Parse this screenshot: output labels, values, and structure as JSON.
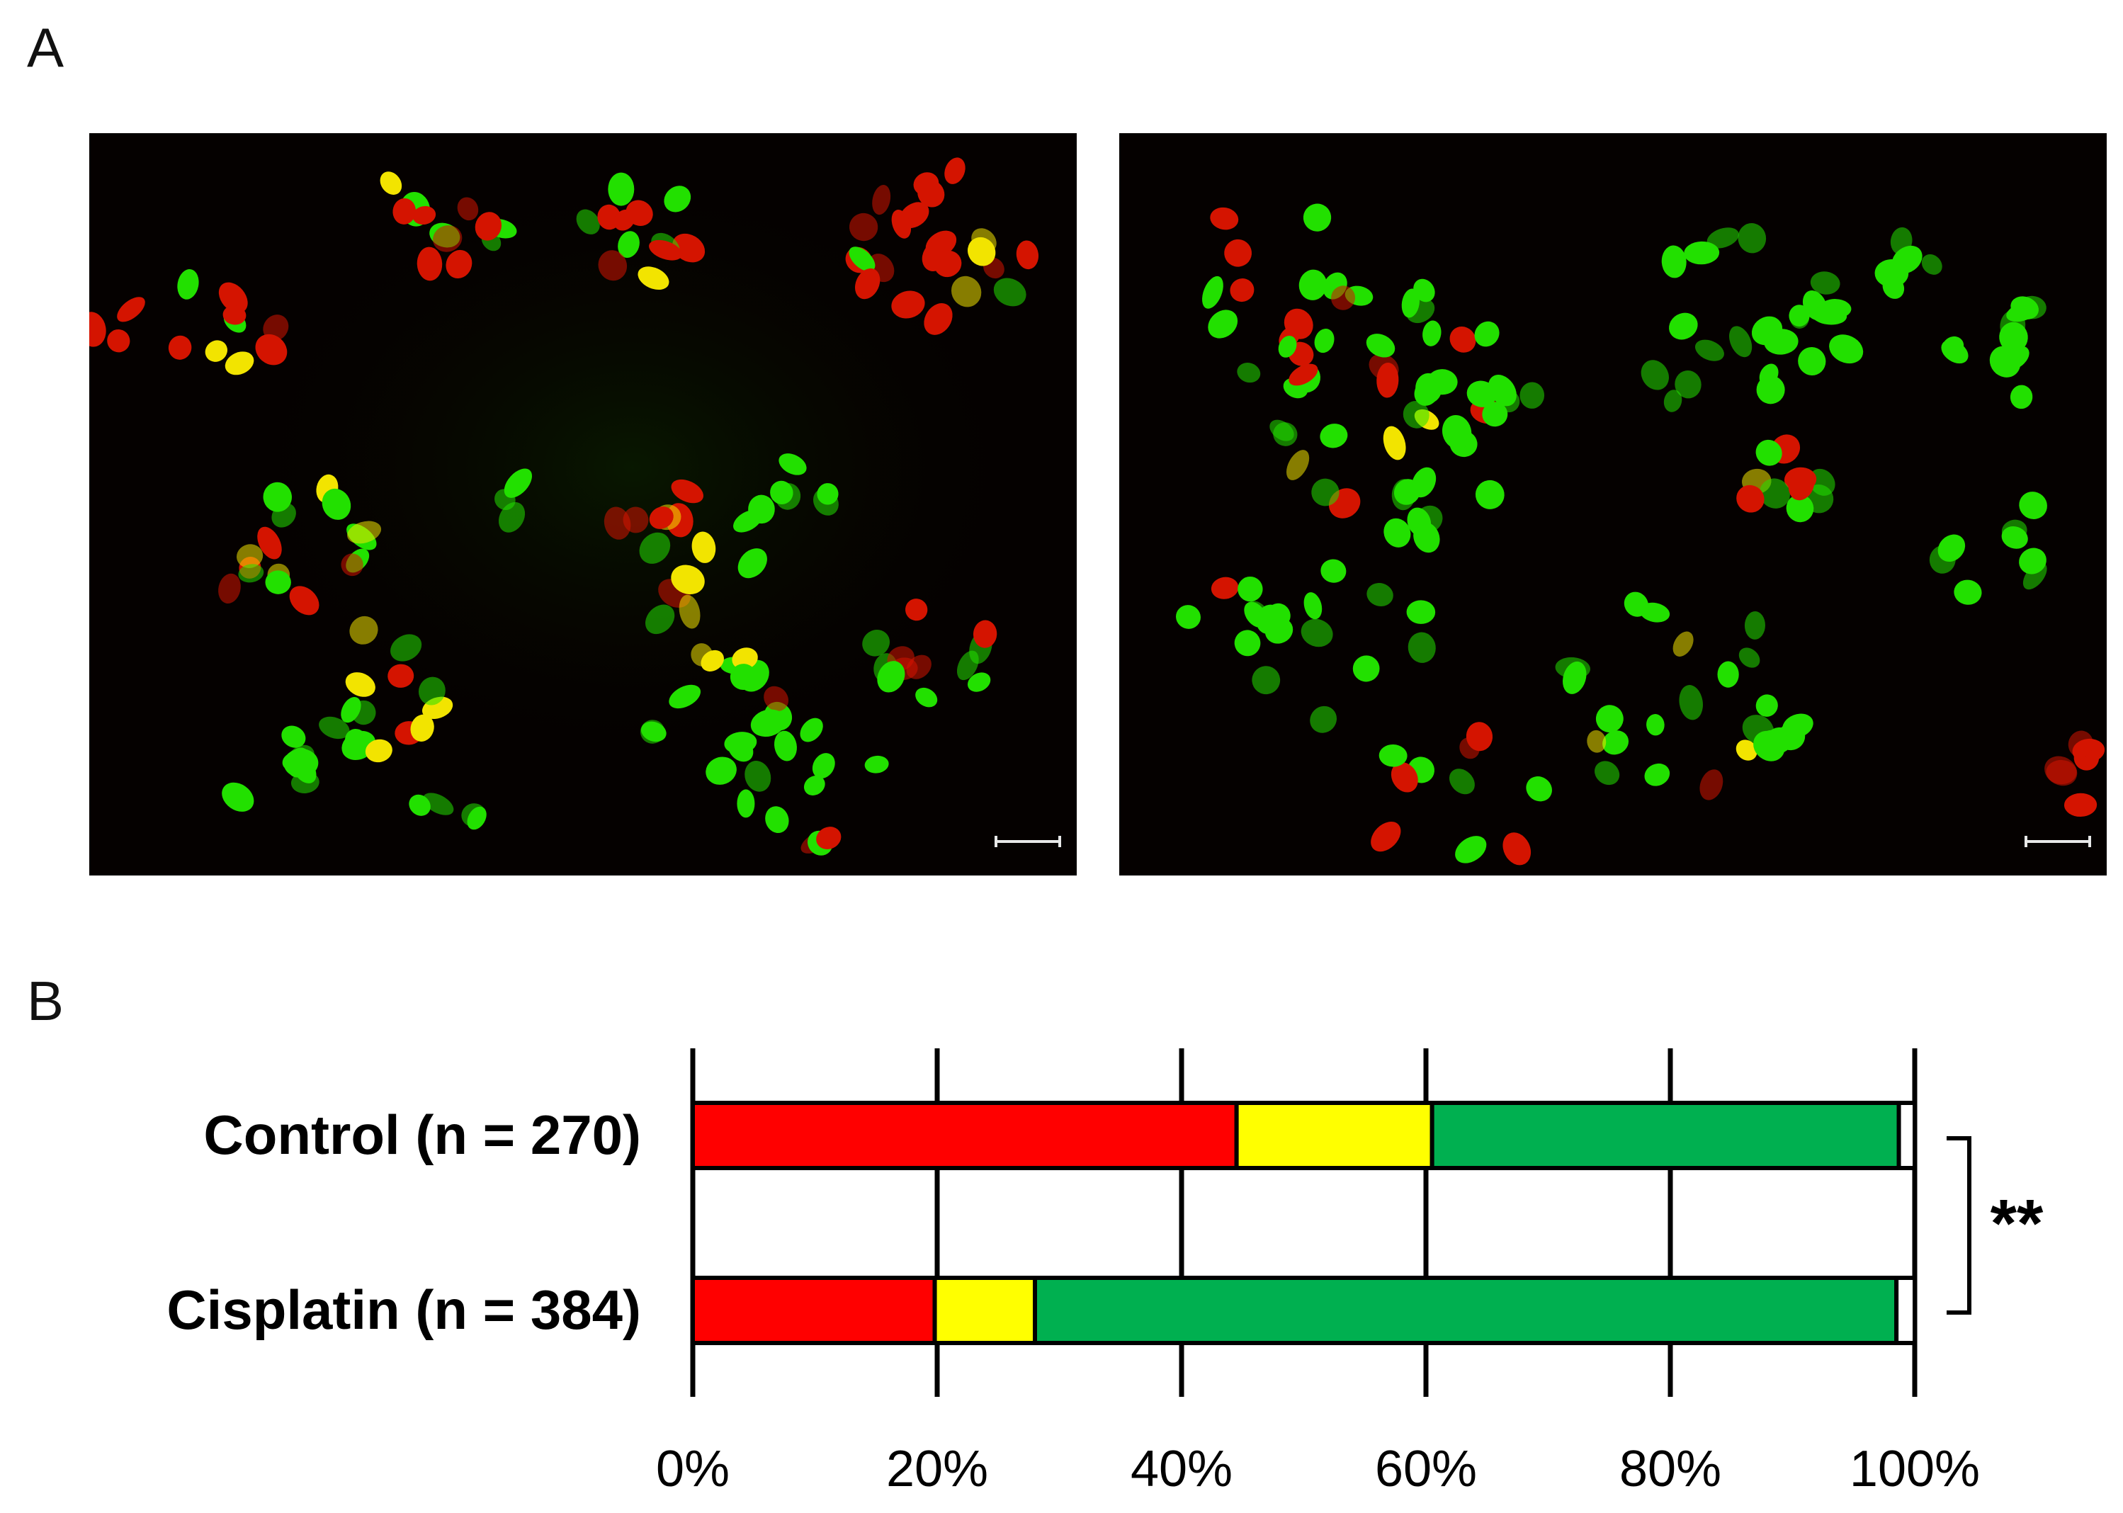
{
  "panels": {
    "a_label": "A",
    "b_label": "B"
  },
  "colors": {
    "red": "#ff0000",
    "yellow": "#ffff00",
    "green": "#00b050",
    "cell_green": "#22e000",
    "cell_red": "#d41400",
    "cell_yellow": "#f2e400",
    "background": "#050100"
  },
  "micrographs": [
    {
      "name": "Control field",
      "scale_bar": true
    },
    {
      "name": "Cisplatin field",
      "scale_bar": true
    }
  ],
  "chart_data": {
    "type": "bar",
    "orientation": "horizontal",
    "stacked": true,
    "categories": [
      "Control (n = 270)",
      "Cisplatin (n = 384)"
    ],
    "series": [
      {
        "color": "#ff0000",
        "values": [
          44.5,
          19.8
        ]
      },
      {
        "color": "#ffff00",
        "values": [
          16.0,
          8.2
        ]
      },
      {
        "color": "#00b050",
        "values": [
          38.2,
          70.5
        ]
      },
      {
        "color": "#ffffff",
        "values": [
          1.3,
          1.5
        ]
      }
    ],
    "xlim": [
      0,
      100
    ],
    "xticks": [
      "0%",
      "20%",
      "40%",
      "60%",
      "80%",
      "100%"
    ],
    "grid": true,
    "significance": "**"
  }
}
